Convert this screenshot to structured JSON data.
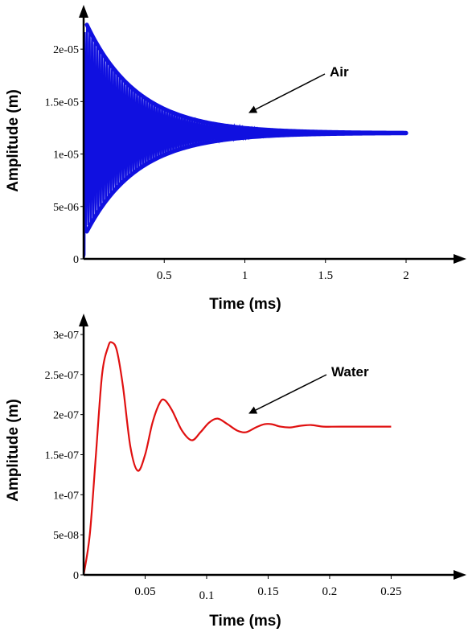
{
  "chart_data": [
    {
      "type": "line",
      "xlabel": "Time (ms)",
      "ylabel": "Amplitude (m)",
      "xlim": [
        0,
        2
      ],
      "ylim": [
        0,
        2.3e-05
      ],
      "x_ticks": [
        0.5,
        1,
        1.5,
        2
      ],
      "x_tick_labels": [
        "0.5",
        "1",
        "1.5",
        "2"
      ],
      "y_ticks": [
        0,
        5e-06,
        1e-05,
        1.5e-05,
        2e-05
      ],
      "y_tick_labels": [
        "0",
        "5e-06",
        "1e-05",
        "1.5e-05",
        "2e-05"
      ],
      "annotation": "Air",
      "series_color": "#1010e0",
      "series": [
        {
          "description": "fast damped oscillation settling to 1.2e-05",
          "final_value": 1.2e-05,
          "peak_max": 2.3e-05,
          "first_min": 2e-06,
          "x_start": 0,
          "x_end": 2,
          "settling_time": 1.1
        }
      ]
    },
    {
      "type": "line",
      "xlabel": "Time (ms)",
      "ylabel": "Amplitude (m)",
      "xlim": [
        0,
        0.27
      ],
      "ylim": [
        0,
        3.1e-07
      ],
      "x_ticks": [
        0.05,
        0.1,
        0.15,
        0.2,
        0.25
      ],
      "x_tick_labels": [
        "0.05",
        "0.1",
        "0.15",
        "0.2",
        "0.25"
      ],
      "y_ticks": [
        0,
        5e-08,
        1e-07,
        1.5e-07,
        2e-07,
        2.5e-07,
        3e-07
      ],
      "y_tick_labels": [
        "0",
        "5e-08",
        "1e-07",
        "1.5e-07",
        "2e-07",
        "2.5e-07",
        "3e-07"
      ],
      "annotation": "Water",
      "series_color": "#e01010",
      "series": [
        {
          "x": [
            0.0,
            0.005,
            0.01,
            0.015,
            0.02,
            0.023,
            0.027,
            0.032,
            0.038,
            0.044,
            0.05,
            0.056,
            0.062,
            0.066,
            0.072,
            0.08,
            0.088,
            0.095,
            0.102,
            0.109,
            0.117,
            0.125,
            0.132,
            0.14,
            0.147,
            0.153,
            0.16,
            0.168,
            0.176,
            0.185,
            0.195,
            0.21,
            0.25
          ],
          "y": [
            0.0,
            5e-08,
            1.5e-07,
            2.5e-07,
            2.85e-07,
            2.9e-07,
            2.8e-07,
            2.35e-07,
            1.6e-07,
            1.3e-07,
            1.5e-07,
            1.9e-07,
            2.15e-07,
            2.18e-07,
            2.05e-07,
            1.8e-07,
            1.68e-07,
            1.78e-07,
            1.9e-07,
            1.95e-07,
            1.88e-07,
            1.8e-07,
            1.78e-07,
            1.84e-07,
            1.88e-07,
            1.88e-07,
            1.85e-07,
            1.84e-07,
            1.86e-07,
            1.87e-07,
            1.85e-07,
            1.85e-07,
            1.85e-07
          ]
        }
      ]
    }
  ]
}
